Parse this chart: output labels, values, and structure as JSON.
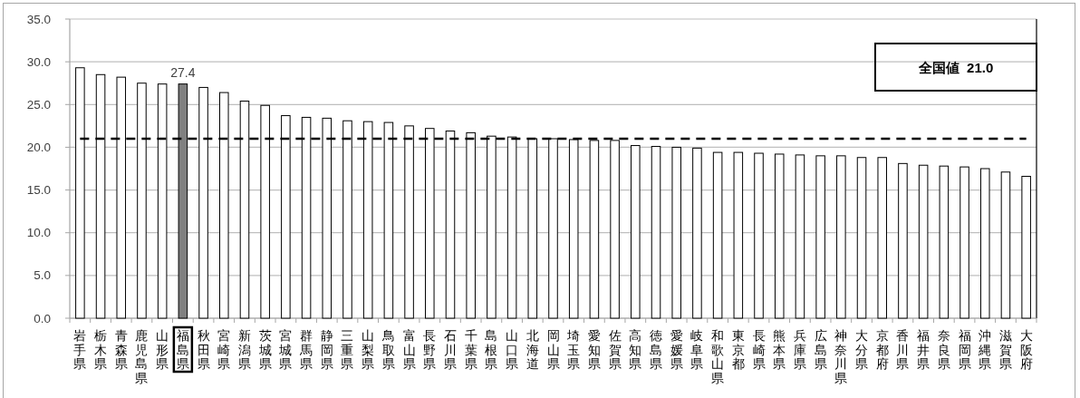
{
  "chart_data": {
    "type": "bar",
    "categories": [
      "岩手県",
      "栃木県",
      "青森県",
      "鹿児島県",
      "山形県",
      "福島県",
      "秋田県",
      "宮崎県",
      "新潟県",
      "茨城県",
      "宮城県",
      "群馬県",
      "静岡県",
      "三重県",
      "山梨県",
      "鳥取県",
      "富山県",
      "長野県",
      "石川県",
      "千葉県",
      "島根県",
      "山口県",
      "北海道",
      "岡山県",
      "埼玉県",
      "愛知県",
      "佐賀県",
      "高知県",
      "徳島県",
      "愛媛県",
      "岐阜県",
      "和歌山県",
      "東京都",
      "長崎県",
      "熊本県",
      "兵庫県",
      "広島県",
      "神奈川県",
      "大分県",
      "京都府",
      "香川県",
      "福井県",
      "奈良県",
      "福岡県",
      "沖縄県",
      "滋賀県",
      "大阪府"
    ],
    "values": [
      29.3,
      28.5,
      28.2,
      27.5,
      27.4,
      27.4,
      27.0,
      26.4,
      25.4,
      24.9,
      23.7,
      23.5,
      23.4,
      23.1,
      23.0,
      22.9,
      22.5,
      22.2,
      21.9,
      21.7,
      21.3,
      21.2,
      21.0,
      21.0,
      20.9,
      20.8,
      20.8,
      20.2,
      20.1,
      20.0,
      19.9,
      19.4,
      19.4,
      19.3,
      19.2,
      19.1,
      19.0,
      19.0,
      18.8,
      18.8,
      18.1,
      17.9,
      17.8,
      17.7,
      17.5,
      17.1,
      16.6
    ],
    "colors": [
      "#ffffff",
      "#ffffff",
      "#ffffff",
      "#ffffff",
      "#ffffff",
      "#808080",
      "#ffffff",
      "#ffffff",
      "#ffffff",
      "#ffffff",
      "#ffffff",
      "#ffffff",
      "#ffffff",
      "#ffffff",
      "#ffffff",
      "#ffffff",
      "#ffffff",
      "#ffffff",
      "#ffffff",
      "#ffffff",
      "#ffffff",
      "#ffffff",
      "#ffffff",
      "#ffffff",
      "#ffffff",
      "#ffffff",
      "#ffffff",
      "#ffffff",
      "#ffffff",
      "#ffffff",
      "#ffffff",
      "#ffffff",
      "#ffffff",
      "#ffffff",
      "#ffffff",
      "#ffffff",
      "#ffffff",
      "#ffffff",
      "#ffffff",
      "#ffffff",
      "#ffffff",
      "#ffffff",
      "#ffffff",
      "#ffffff",
      "#ffffff",
      "#ffffff",
      "#ffffff"
    ],
    "value_labels": [
      null,
      null,
      null,
      null,
      null,
      "27.4",
      null,
      null,
      null,
      null,
      null,
      null,
      null,
      null,
      null,
      null,
      null,
      null,
      null,
      null,
      null,
      null,
      null,
      null,
      null,
      null,
      null,
      null,
      null,
      null,
      null,
      null,
      null,
      null,
      null,
      null,
      null,
      null,
      null,
      null,
      null,
      null,
      null,
      null,
      null,
      null,
      null
    ],
    "ylim": [
      0,
      35
    ],
    "yticks": [
      {
        "value": 0,
        "label": "0.0"
      },
      {
        "value": 5,
        "label": "5.0"
      },
      {
        "value": 10,
        "label": "10.0"
      },
      {
        "value": 15,
        "label": "15.0"
      },
      {
        "value": 20,
        "label": "20.0"
      },
      {
        "value": 25,
        "label": "25.0"
      },
      {
        "value": 30,
        "label": "30.0"
      },
      {
        "value": 35,
        "label": "35.0"
      }
    ],
    "grid": "y",
    "ref_lines": [
      {
        "axis": "y",
        "value": 21.0,
        "label": "全国値  21.0",
        "color": "#000000",
        "line_style": "dashed"
      }
    ]
  }
}
